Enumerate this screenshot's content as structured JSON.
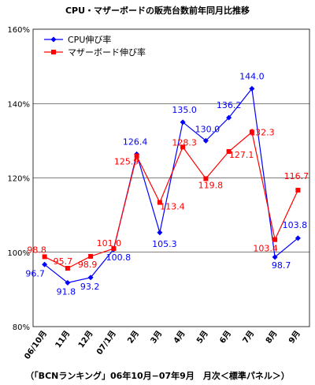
{
  "chart_data": {
    "type": "line",
    "title": "CPU・マザーボードの販売台数前年同月比推移",
    "footnote": "（「BCNランキング」06年10月−07年9月　月次＜標準パネル＞）",
    "y_tick_labels": [
      "160%",
      "140%",
      "120%",
      "100%",
      "80%"
    ],
    "y_ticks": [
      160,
      140,
      120,
      100,
      80
    ],
    "ylim": [
      80,
      160
    ],
    "grid": "horizontal",
    "legend_position": "top-left",
    "categories": [
      "06/10月",
      "11月",
      "12月",
      "07/1月",
      "2月",
      "3月",
      "4月",
      "5月",
      "6月",
      "7月",
      "8月",
      "9月"
    ],
    "series": [
      {
        "name": "CPU伸び率",
        "color": "#0000ff",
        "marker": "diamond",
        "values": [
          96.7,
          91.8,
          93.2,
          100.8,
          126.4,
          105.3,
          135.0,
          130.0,
          136.2,
          144.0,
          98.7,
          103.8
        ],
        "labels": [
          "96.7",
          "91.8",
          "93.2",
          "100.8",
          "126.4",
          "105.3",
          "135.0",
          "130.0",
          "136.2",
          "144.0",
          "98.7",
          "103.8"
        ]
      },
      {
        "name": "マザーボード伸び率",
        "color": "#ff0000",
        "marker": "square",
        "values": [
          98.8,
          95.7,
          98.9,
          101.0,
          125.9,
          113.4,
          128.3,
          119.8,
          127.1,
          132.3,
          103.4,
          116.7
        ],
        "labels": [
          "98.8",
          "95.7",
          "98.9",
          "101.0",
          "125.9",
          "113.4",
          "128.3",
          "119.8",
          "127.1",
          "132.3",
          "103.4",
          "116.7"
        ]
      }
    ]
  }
}
